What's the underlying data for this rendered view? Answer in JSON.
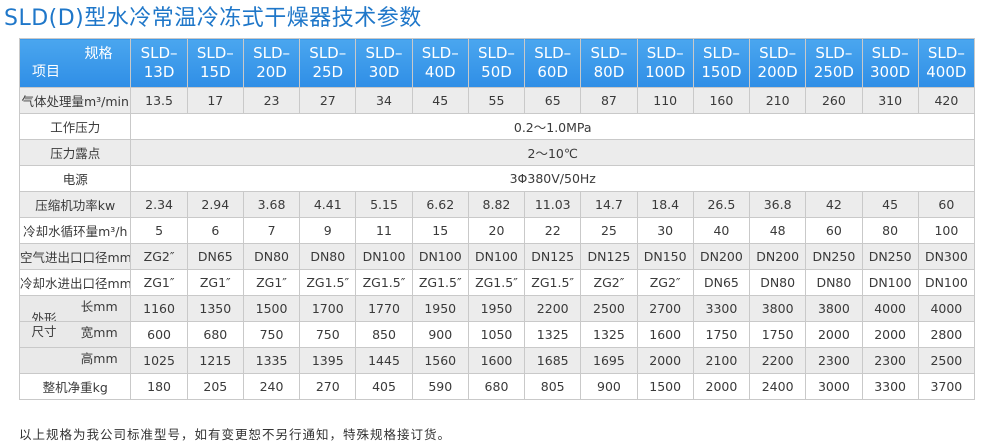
{
  "title": "SLD(D)型水冷常温冷冻式干燥器技术参数",
  "header": {
    "corner_top": "规格",
    "corner_bottom": "项目",
    "models": [
      {
        "a": "SLD–",
        "b": "13D"
      },
      {
        "a": "SLD–",
        "b": "15D"
      },
      {
        "a": "SLD–",
        "b": "20D"
      },
      {
        "a": "SLD–",
        "b": "25D"
      },
      {
        "a": "SLD–",
        "b": "30D"
      },
      {
        "a": "SLD–",
        "b": "40D"
      },
      {
        "a": "SLD–",
        "b": "50D"
      },
      {
        "a": "SLD–",
        "b": "60D"
      },
      {
        "a": "SLD–",
        "b": "80D"
      },
      {
        "a": "SLD–",
        "b": "100D"
      },
      {
        "a": "SLD–",
        "b": "150D"
      },
      {
        "a": "SLD–",
        "b": "200D"
      },
      {
        "a": "SLD–",
        "b": "250D"
      },
      {
        "a": "SLD–",
        "b": "300D"
      },
      {
        "a": "SLD–",
        "b": "400D"
      }
    ]
  },
  "rows": [
    {
      "label": "气体处理量m³/min",
      "values": [
        "13.5",
        "17",
        "23",
        "27",
        "34",
        "45",
        "55",
        "65",
        "87",
        "110",
        "160",
        "210",
        "260",
        "310",
        "420"
      ]
    },
    {
      "label": "工作压力",
      "span": "0.2～1.0MPa"
    },
    {
      "label": "压力露点",
      "span": "2～10℃"
    },
    {
      "label": "电源",
      "span": "3Φ380V/50Hz"
    },
    {
      "label": "压缩机功率kw",
      "values": [
        "2.34",
        "2.94",
        "3.68",
        "4.41",
        "5.15",
        "6.62",
        "8.82",
        "11.03",
        "14.7",
        "18.4",
        "26.5",
        "36.8",
        "42",
        "45",
        "60"
      ]
    },
    {
      "label": "冷却水循环量m³/h",
      "values": [
        "5",
        "6",
        "7",
        "9",
        "11",
        "15",
        "20",
        "22",
        "25",
        "30",
        "40",
        "48",
        "60",
        "80",
        "100"
      ]
    },
    {
      "label": "空气进出口口径mm",
      "values": [
        "ZG2″",
        "DN65",
        "DN80",
        "DN80",
        "DN100",
        "DN100",
        "DN100",
        "DN125",
        "DN125",
        "DN150",
        "DN200",
        "DN200",
        "DN250",
        "DN250",
        "DN300"
      ]
    },
    {
      "label": "冷却水进出口径mm",
      "values": [
        "ZG1″",
        "ZG1″",
        "ZG1″",
        "ZG1.5″",
        "ZG1.5″",
        "ZG1.5″",
        "ZG1.5″",
        "ZG1.5″",
        "ZG2″",
        "ZG2″",
        "DN65",
        "DN80",
        "DN80",
        "DN100",
        "DN100"
      ]
    }
  ],
  "dimensions": {
    "group_line1": "外形",
    "group_line2": "尺寸",
    "rows": [
      {
        "label": "长mm",
        "values": [
          "1160",
          "1350",
          "1500",
          "1700",
          "1770",
          "1950",
          "1950",
          "2200",
          "2500",
          "2700",
          "3300",
          "3800",
          "3800",
          "4000",
          "4000"
        ]
      },
      {
        "label": "宽mm",
        "values": [
          "600",
          "680",
          "750",
          "750",
          "850",
          "900",
          "1050",
          "1325",
          "1325",
          "1600",
          "1750",
          "1750",
          "2000",
          "2000",
          "2800"
        ]
      },
      {
        "label": "高mm",
        "values": [
          "1025",
          "1215",
          "1335",
          "1395",
          "1445",
          "1560",
          "1600",
          "1685",
          "1695",
          "2000",
          "2100",
          "2200",
          "2300",
          "2300",
          "2500"
        ]
      }
    ]
  },
  "weight": {
    "label": "整机净重kg",
    "values": [
      "180",
      "205",
      "240",
      "270",
      "405",
      "590",
      "680",
      "805",
      "900",
      "1500",
      "2000",
      "2400",
      "3000",
      "3300",
      "3700"
    ]
  },
  "footnote": "以上规格为我公司标准型号，如有变更恕不另行通知，特殊规格接订货。"
}
